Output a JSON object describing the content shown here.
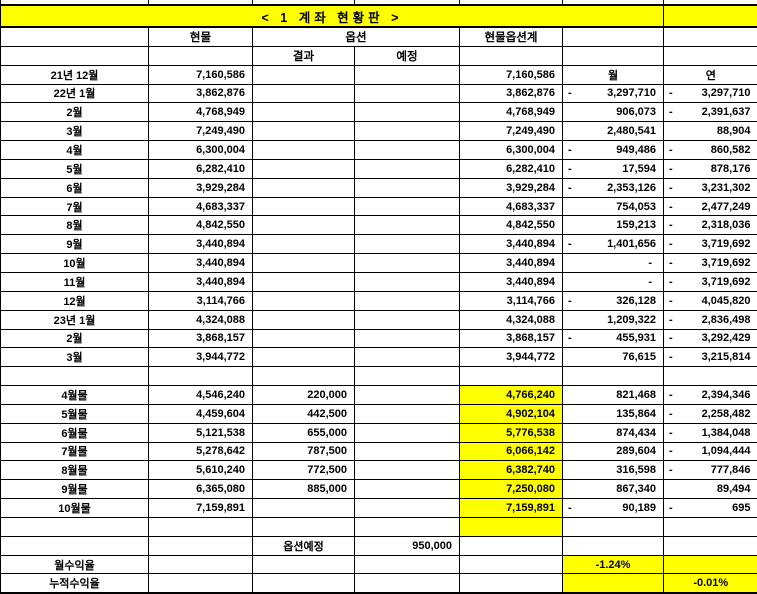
{
  "title": "< 1 계좌 현황판 >",
  "colors": {
    "highlight": "#ffff00",
    "grid": "#000000",
    "background": "#ffffff"
  },
  "headers": {
    "spot": "현물",
    "option": "옵션",
    "result": "결과",
    "planned": "예정",
    "total": "현물옵션계",
    "month": "월",
    "year": "연"
  },
  "monthly": [
    {
      "label": "21년 12월",
      "spot": "7,160,586",
      "total": "7,160,586",
      "month": "월",
      "year": "연",
      "subheader": true
    },
    {
      "label": "22년 1월",
      "spot": "3,862,876",
      "total": "3,862,876",
      "month": "-3,297,710",
      "year": "-3,297,710"
    },
    {
      "label": "2월",
      "spot": "4,768,949",
      "total": "4,768,949",
      "month": "906,073",
      "year": "-2,391,637"
    },
    {
      "label": "3월",
      "spot": "7,249,490",
      "total": "7,249,490",
      "month": "2,480,541",
      "year": "88,904"
    },
    {
      "label": "4월",
      "spot": "6,300,004",
      "total": "6,300,004",
      "month": "-949,486",
      "year": "-860,582"
    },
    {
      "label": "5월",
      "spot": "6,282,410",
      "total": "6,282,410",
      "month": "-17,594",
      "year": "-878,176"
    },
    {
      "label": "6월",
      "spot": "3,929,284",
      "total": "3,929,284",
      "month": "-2,353,126",
      "year": "-3,231,302"
    },
    {
      "label": "7월",
      "spot": "4,683,337",
      "total": "4,683,337",
      "month": "754,053",
      "year": "-2,477,249"
    },
    {
      "label": "8월",
      "spot": "4,842,550",
      "total": "4,842,550",
      "month": "159,213",
      "year": "-2,318,036"
    },
    {
      "label": "9월",
      "spot": "3,440,894",
      "total": "3,440,894",
      "month": "-1,401,656",
      "year": "-3,719,692"
    },
    {
      "label": "10월",
      "spot": "3,440,894",
      "total": "3,440,894",
      "month": "-",
      "year": "-3,719,692"
    },
    {
      "label": "11월",
      "spot": "3,440,894",
      "total": "3,440,894",
      "month": "-",
      "year": "-3,719,692"
    },
    {
      "label": "12월",
      "spot": "3,114,766",
      "total": "3,114,766",
      "month": "-326,128",
      "year": "-4,045,820"
    },
    {
      "label": "23년 1월",
      "spot": "4,324,088",
      "total": "4,324,088",
      "month": "1,209,322",
      "year": "-2,836,498"
    },
    {
      "label": "2월",
      "spot": "3,868,157",
      "total": "3,868,157",
      "month": "-455,931",
      "year": "-3,292,429"
    },
    {
      "label": "3월",
      "spot": "3,944,772",
      "total": "3,944,772",
      "month": "76,615",
      "year": "-3,215,814"
    }
  ],
  "futures": [
    {
      "label": "4월물",
      "spot": "4,546,240",
      "result": "220,000",
      "total": "4,766,240",
      "month": "821,468",
      "year": "-2,394,346"
    },
    {
      "label": "5월물",
      "spot": "4,459,604",
      "result": "442,500",
      "total": "4,902,104",
      "month": "135,864",
      "year": "-2,258,482"
    },
    {
      "label": "6월물",
      "spot": "5,121,538",
      "result": "655,000",
      "total": "5,776,538",
      "month": "874,434",
      "year": "-1,384,048"
    },
    {
      "label": "7월물",
      "spot": "5,278,642",
      "result": "787,500",
      "total": "6,066,142",
      "month": "289,604",
      "year": "-1,094,444"
    },
    {
      "label": "8월물",
      "spot": "5,610,240",
      "result": "772,500",
      "total": "6,382,740",
      "month": "316,598",
      "year": "-777,846"
    },
    {
      "label": "9월물",
      "spot": "6,365,080",
      "result": "885,000",
      "total": "7,250,080",
      "month": "867,340",
      "year": "89,494"
    },
    {
      "label": "10월물",
      "spot": "7,159,891",
      "result": "",
      "total": "7,159,891",
      "month": "-90,189",
      "year": "-695"
    }
  ],
  "footer": {
    "option_planned_label": "옵션예정",
    "option_planned_value": "950,000",
    "monthly_return_label": "월수익율",
    "monthly_return_value": "-1.24%",
    "cumulative_return_label": "누적수익율",
    "cumulative_return_value": "-0.01%"
  }
}
